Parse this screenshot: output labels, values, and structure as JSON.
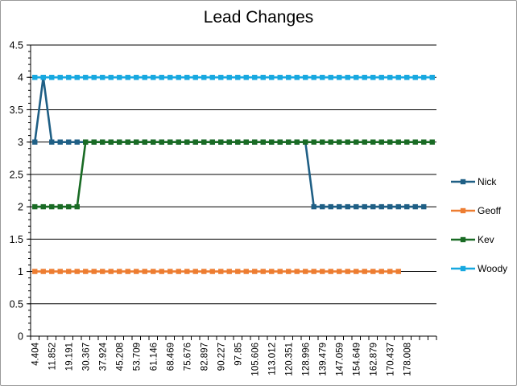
{
  "chart_data": {
    "type": "line",
    "title": "Lead Changes",
    "xlabel": "",
    "ylabel": "",
    "ylim": [
      0,
      4.5
    ],
    "ytick_step": 0.5,
    "ytick_labels": [
      "0",
      "0.5",
      "1",
      "1.5",
      "2",
      "2.5",
      "3",
      "3.5",
      "4",
      "4.5"
    ],
    "grid": true,
    "legend_position": "right",
    "x_count": 48,
    "x_tick_labels": [
      "4.404",
      "11.852",
      "19.191",
      "30.367",
      "37.924",
      "45.208",
      "53.709",
      "61.146",
      "68.469",
      "75.676",
      "82.897",
      "90.227",
      "97.85",
      "105.606",
      "113.012",
      "120.351",
      "128.996",
      "139.479",
      "147.059",
      "154.649",
      "162.879",
      "170.437",
      "178.008"
    ],
    "series": [
      {
        "name": "Nick",
        "color": "#1f5f85",
        "values": [
          3,
          4,
          3,
          3,
          3,
          3,
          3,
          3,
          3,
          3,
          3,
          3,
          3,
          3,
          3,
          3,
          3,
          3,
          3,
          3,
          3,
          3,
          3,
          3,
          3,
          3,
          3,
          3,
          3,
          3,
          3,
          3,
          3,
          2,
          2,
          2,
          2,
          2,
          2,
          2,
          2,
          2,
          2,
          2,
          2,
          2,
          2,
          null
        ]
      },
      {
        "name": "Geoff",
        "color": "#ed7d31",
        "values": [
          1,
          1,
          1,
          1,
          1,
          1,
          1,
          1,
          1,
          1,
          1,
          1,
          1,
          1,
          1,
          1,
          1,
          1,
          1,
          1,
          1,
          1,
          1,
          1,
          1,
          1,
          1,
          1,
          1,
          1,
          1,
          1,
          1,
          1,
          1,
          1,
          1,
          1,
          1,
          1,
          1,
          1,
          1,
          1,
          null,
          null,
          null,
          null
        ]
      },
      {
        "name": "Kev",
        "color": "#196b24",
        "values": [
          2,
          2,
          2,
          2,
          2,
          2,
          3,
          3,
          3,
          3,
          3,
          3,
          3,
          3,
          3,
          3,
          3,
          3,
          3,
          3,
          3,
          3,
          3,
          3,
          3,
          3,
          3,
          3,
          3,
          3,
          3,
          3,
          3,
          3,
          3,
          3,
          3,
          3,
          3,
          3,
          3,
          3,
          3,
          3,
          3,
          3,
          3,
          3
        ]
      },
      {
        "name": "Woody",
        "color": "#17a8e0",
        "values": [
          4,
          4,
          4,
          4,
          4,
          4,
          4,
          4,
          4,
          4,
          4,
          4,
          4,
          4,
          4,
          4,
          4,
          4,
          4,
          4,
          4,
          4,
          4,
          4,
          4,
          4,
          4,
          4,
          4,
          4,
          4,
          4,
          4,
          4,
          4,
          4,
          4,
          4,
          4,
          4,
          4,
          4,
          4,
          4,
          4,
          4,
          4,
          4
        ]
      }
    ]
  }
}
